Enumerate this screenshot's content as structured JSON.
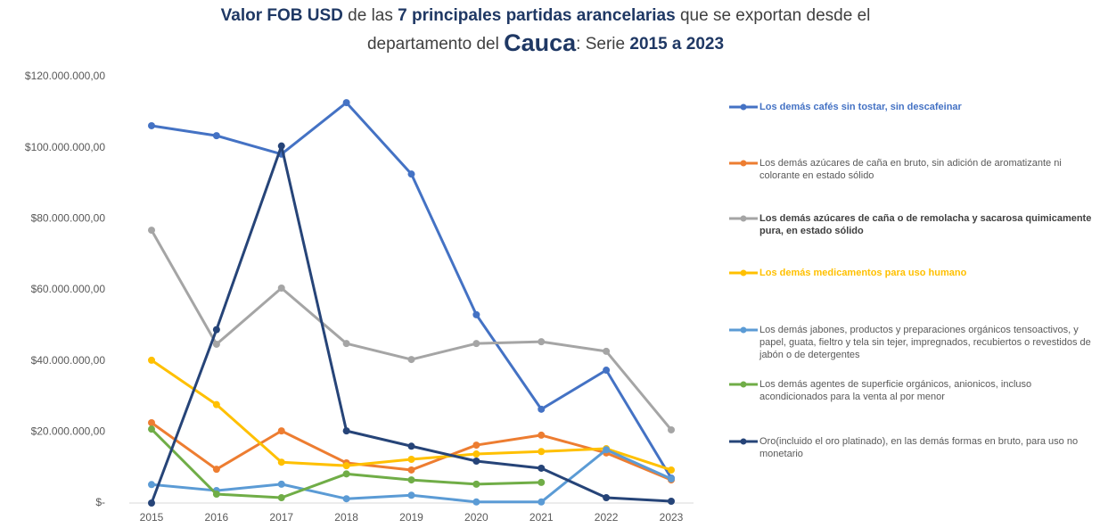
{
  "chart_data": {
    "type": "line",
    "title": [
      [
        "Valor FOB USD",
        " de las ",
        "7 principales partidas arancelarias",
        " que se exportan desde el"
      ],
      [
        "departamento del ",
        "Cauca",
        ": Serie ",
        "2015 a 2023"
      ]
    ],
    "categories": [
      "2015",
      "2016",
      "2017",
      "2018",
      "2019",
      "2020",
      "2021",
      "2022",
      "2023"
    ],
    "ylim": [
      0,
      120000000
    ],
    "yticks": [
      {
        "value": 0,
        "label": "$-"
      },
      {
        "value": 20000000,
        "label": "$20.000.000,00"
      },
      {
        "value": 40000000,
        "label": "$40.000.000,00"
      },
      {
        "value": 60000000,
        "label": "$60.000.000,00"
      },
      {
        "value": 80000000,
        "label": "$80.000.000,00"
      },
      {
        "value": 100000000,
        "label": "$100.000.000,00"
      },
      {
        "value": 120000000,
        "label": "$120.000.000,00"
      }
    ],
    "grid": false,
    "legend": "right",
    "series": [
      {
        "name": "Los demás cafés sin tostar, sin descafeinar",
        "color": "#4472c4",
        "values": [
          106200000,
          103400000,
          98200000,
          112700000,
          92600000,
          53000000,
          26400000,
          37400000,
          7000000
        ]
      },
      {
        "name": "Los demás azúcares de caña en bruto, sin adición de aromatizante ni colorante en estado sólido",
        "color": "#ed7d31",
        "values": [
          22600000,
          9500000,
          20300000,
          11300000,
          9300000,
          16300000,
          19100000,
          14100000,
          6500000
        ]
      },
      {
        "name": "Los demás azúcares de caña o de remolacha y sacarosa quimicamente pura, en estado sólido",
        "color": "#a5a5a5",
        "values": [
          76800000,
          44700000,
          60500000,
          44900000,
          40400000,
          44900000,
          45400000,
          42700000,
          20600000
        ]
      },
      {
        "name": "Los demás medicamentos para uso humano",
        "color": "#ffc000",
        "values": [
          40200000,
          27700000,
          11500000,
          10500000,
          12300000,
          13800000,
          14500000,
          15300000,
          9300000
        ]
      },
      {
        "name": "Los demás jabones, productos y preparaciones orgánicos tensoactivos, y papel, guata, fieltro y tela sin tejer, impregnados, recubiertos o revestidos de jabón o de detergentes",
        "color": "#5b9bd5",
        "values": [
          5200000,
          3500000,
          5300000,
          1200000,
          2200000,
          300000,
          300000,
          15000000,
          6800000
        ]
      },
      {
        "name": "Los demás agentes de superficie orgánicos, anionicos, incluso acondicionados para la venta al por menor",
        "color": "#70ad47",
        "values": [
          20800000,
          2500000,
          1500000,
          8200000,
          6500000,
          5300000,
          5800000,
          null,
          null
        ]
      },
      {
        "name": "Oro(incluido el oro platinado), en las demás formas en bruto, para uso no monetario",
        "color": "#264478",
        "values": [
          0,
          48800000,
          100500000,
          20300000,
          16000000,
          11800000,
          9800000,
          1500000,
          500000
        ]
      }
    ]
  }
}
